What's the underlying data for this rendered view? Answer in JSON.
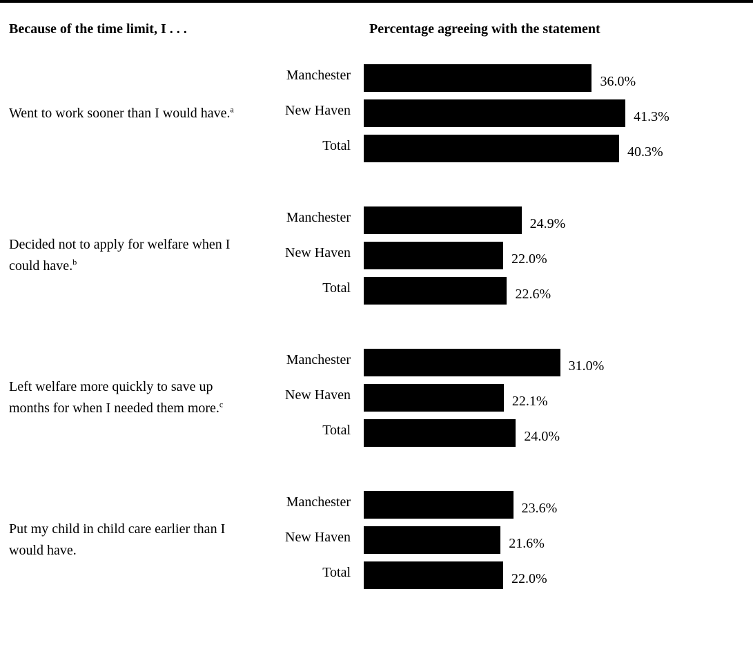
{
  "header": {
    "left": "Because of the time limit, I . . .",
    "right": "Percentage agreeing with the statement"
  },
  "chart_data": {
    "type": "bar",
    "orientation": "horizontal",
    "series_names": [
      "Manchester",
      "New Haven",
      "Total"
    ],
    "groups": [
      {
        "statement": "Went to work sooner than I would have.",
        "note": "a",
        "values": [
          36.0,
          41.3,
          40.3
        ],
        "value_labels": [
          "36.0%",
          "41.3%",
          "40.3%"
        ]
      },
      {
        "statement": "Decided not to apply for welfare when I could have.",
        "note": "b",
        "values": [
          24.9,
          22.0,
          22.6
        ],
        "value_labels": [
          "24.9%",
          "22.0%",
          "22.6%"
        ]
      },
      {
        "statement": "Left welfare more quickly to save up months for when I needed them more.",
        "note": "c",
        "values": [
          31.0,
          22.1,
          24.0
        ],
        "value_labels": [
          "31.0%",
          "22.1%",
          "24.0%"
        ]
      },
      {
        "statement": "Put my child in child care earlier than I would have.",
        "note": "",
        "values": [
          23.6,
          21.6,
          22.0
        ],
        "value_labels": [
          "23.6%",
          "21.6%",
          "22.0%"
        ]
      }
    ],
    "bar_color": "#000000"
  }
}
